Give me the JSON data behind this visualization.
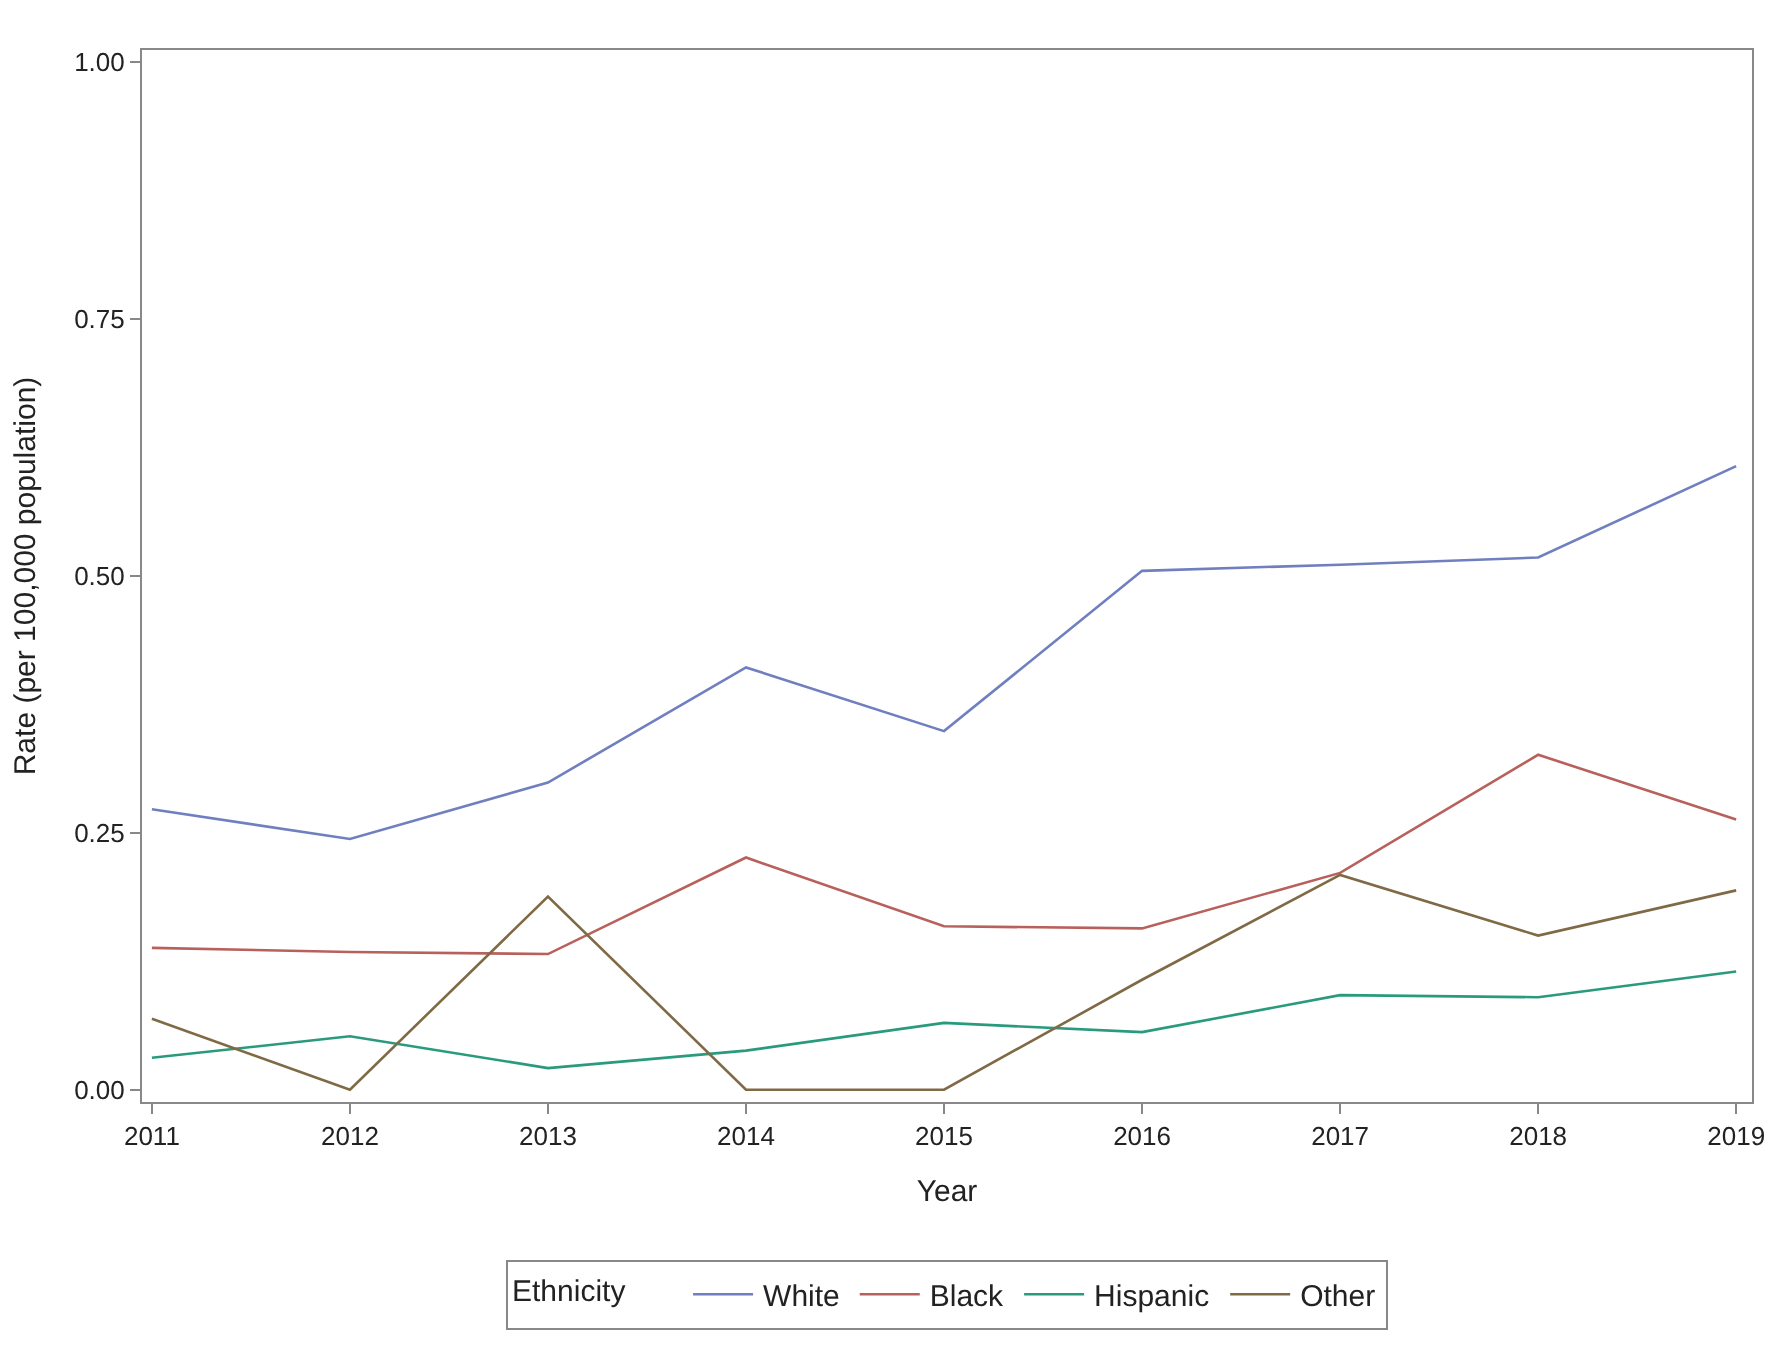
{
  "chart_data": {
    "type": "line",
    "xlabel": "Year",
    "ylabel": "Rate (per 100,000 population)",
    "legend_title": "Ethnicity",
    "legend": "bottom",
    "grid": false,
    "marker": "none",
    "line_style": "solid",
    "x": [
      2011,
      2012,
      2013,
      2014,
      2015,
      2016,
      2017,
      2018,
      2019
    ],
    "xlim": [
      2010.95,
      2019.08
    ],
    "xticks": [
      2011,
      2012,
      2013,
      2014,
      2015,
      2016,
      2017,
      2018,
      2019
    ],
    "ylim": [
      -0.012,
      1.012
    ],
    "yticks": [
      {
        "value": 0,
        "label": "0.00"
      },
      {
        "value": 0.25,
        "label": "0.25"
      },
      {
        "value": 0.5,
        "label": "0.50"
      },
      {
        "value": 0.75,
        "label": "0.75"
      },
      {
        "value": 1,
        "label": "1.00"
      }
    ],
    "series": [
      {
        "name": "White",
        "color": "#6f7fbf",
        "values": [
          0.273,
          0.244,
          0.299,
          0.411,
          0.349,
          0.505,
          0.511,
          0.518,
          0.607
        ]
      },
      {
        "name": "Black",
        "color": "#b8605b",
        "values": [
          0.138,
          0.134,
          0.132,
          0.226,
          0.159,
          0.157,
          0.211,
          0.326,
          0.263
        ]
      },
      {
        "name": "Hispanic",
        "color": "#2a9a7d",
        "values": [
          0.031,
          0.052,
          0.021,
          0.038,
          0.065,
          0.056,
          0.092,
          0.09,
          0.115
        ]
      },
      {
        "name": "Other",
        "color": "#7f6a45",
        "values": [
          0.069,
          0.0,
          0.188,
          0.0,
          0.0,
          0.107,
          0.209,
          0.15,
          0.194
        ]
      }
    ]
  }
}
